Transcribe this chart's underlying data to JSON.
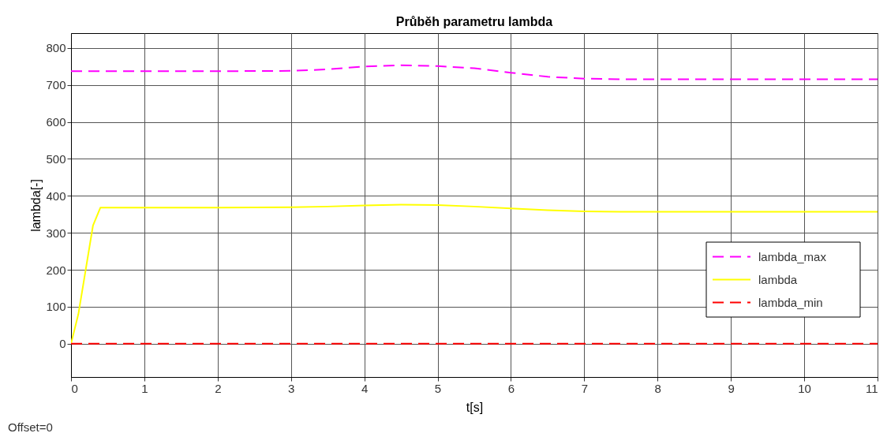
{
  "chart_data": {
    "type": "line",
    "title": "Průběh parametru lambda",
    "xlabel": "t[s]",
    "ylabel": "lambda[-]",
    "xlim": [
      0,
      11
    ],
    "xticks": [
      0,
      1,
      2,
      3,
      4,
      5,
      6,
      7,
      8,
      9,
      10,
      11
    ],
    "ylim": [
      -90,
      840
    ],
    "yticks": [
      0,
      100,
      200,
      300,
      400,
      500,
      600,
      700,
      800
    ],
    "grid": true,
    "legend": "bottom right",
    "annotations": [
      "Offset=0"
    ],
    "series": [
      {
        "name": "lambda_max",
        "color": "#ff00ff",
        "line_style": "dashed",
        "x": [
          0,
          1,
          2,
          3,
          3.5,
          4,
          4.5,
          5,
          5.5,
          6,
          6.5,
          7,
          7.5,
          8,
          9,
          10,
          11
        ],
        "values": [
          737,
          737,
          737,
          738,
          742,
          750,
          753,
          751,
          745,
          733,
          722,
          717,
          715,
          715,
          715,
          715,
          715
        ]
      },
      {
        "name": "lambda",
        "color": "#ffff00",
        "line_style": "solid",
        "x": [
          0,
          0.1,
          0.2,
          0.3,
          0.4,
          1,
          2,
          3,
          3.5,
          4,
          4.5,
          5,
          5.5,
          6,
          6.5,
          7,
          7.5,
          8,
          9,
          10,
          11
        ],
        "values": [
          0,
          80,
          200,
          320,
          368,
          368,
          368,
          369,
          371,
          374,
          376,
          375,
          371,
          366,
          361,
          358,
          357,
          357,
          357,
          357,
          357
        ]
      },
      {
        "name": "lambda_min",
        "color": "#ff0000",
        "line_style": "dashed",
        "x": [
          0,
          11
        ],
        "values": [
          0,
          0
        ]
      }
    ]
  }
}
